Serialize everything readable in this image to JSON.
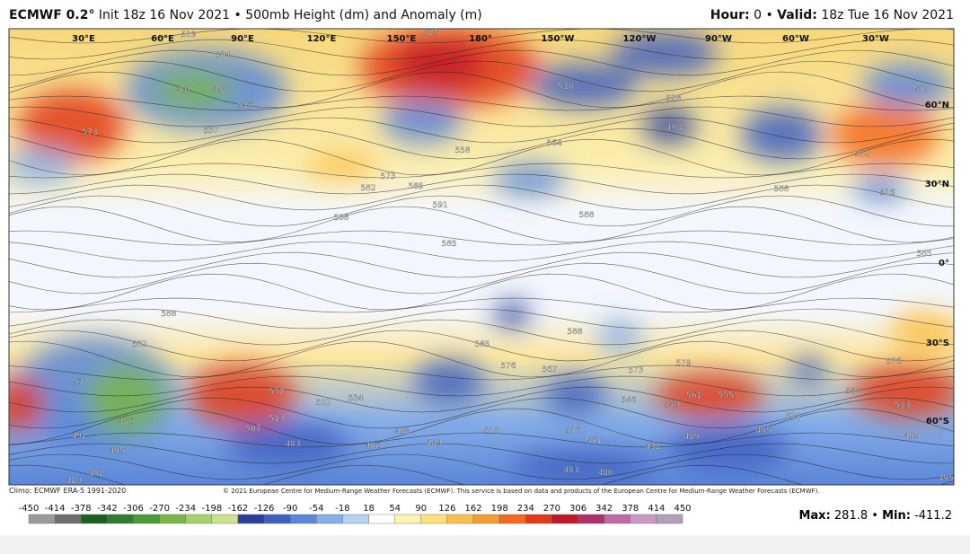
{
  "header": {
    "model": "ECMWF 0.2°",
    "init": "Init 18z 16 Nov 2021",
    "separator": "•",
    "product": "500mb Height (dm) and Anomaly (m)",
    "hour_label": "Hour:",
    "hour": "0",
    "valid_label": "Valid:",
    "valid": "18z Tue 16 Nov 2021"
  },
  "map": {
    "longitude_labels": [
      "30°E",
      "60°E",
      "90°E",
      "120°E",
      "150°E",
      "180°",
      "150°W",
      "120°W",
      "90°W",
      "60°W",
      "30°W"
    ],
    "latitude_labels": [
      "60°N",
      "30°N",
      "0°",
      "30°S",
      "60°S"
    ],
    "contour_labels": [
      "519",
      "504",
      "492",
      "498",
      "516",
      "573",
      "537",
      "525",
      "510",
      "528",
      "498",
      "564",
      "558",
      "573",
      "582",
      "585",
      "591",
      "588",
      "588",
      "588",
      "516",
      "507",
      "582",
      "585",
      "588",
      "582",
      "537",
      "486",
      "492",
      "495",
      "492",
      "489",
      "552",
      "534",
      "522",
      "507",
      "513",
      "483",
      "486",
      "498",
      "489",
      "510",
      "516",
      "501",
      "432",
      "489",
      "495",
      "483",
      "486",
      "585",
      "576",
      "567",
      "573",
      "579",
      "588",
      "546",
      "549",
      "561",
      "555",
      "524",
      "558",
      "543",
      "576",
      "495",
      "495",
      "585"
    ]
  },
  "footer": {
    "climo": "Climo: ECMWF ERA-5 1991-2020",
    "copyright": "© 2021 European Centre for Medium-Range Weather Forecasts (ECMWF). This service is based on data and products of the European Centre for Medium-Range Weather Forecasts (ECMWF).",
    "max_label": "Max:",
    "max": "281.8",
    "min_label": "Min:",
    "min": "-411.2"
  },
  "colorbar": {
    "ticks": [
      -450,
      -414,
      -378,
      -342,
      -306,
      -270,
      -234,
      -198,
      -162,
      -126,
      -90,
      -54,
      -18,
      18,
      54,
      90,
      126,
      162,
      198,
      234,
      270,
      306,
      342,
      378,
      414,
      450
    ],
    "colors": [
      "#9a9a9a",
      "#6e6e6e",
      "#1f5e1f",
      "#2e7d32",
      "#4c9a3a",
      "#7ab648",
      "#a7cf6a",
      "#c9e08e",
      "#2b3e9e",
      "#3f5fc0",
      "#5b86d8",
      "#86aee8",
      "#b5d2f2",
      "#ffffff",
      "#fff3b0",
      "#fde07a",
      "#fbc04a",
      "#f79a30",
      "#f26a1f",
      "#e03a1a",
      "#c0182a",
      "#b0306e",
      "#c068a8",
      "#c89ac8",
      "#b0a0b8"
    ]
  }
}
